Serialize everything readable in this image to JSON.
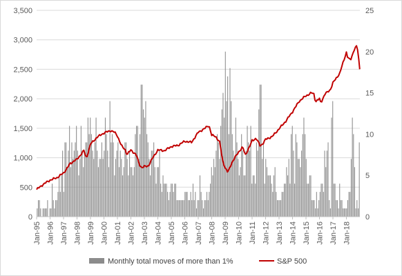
{
  "chart_data": {
    "type": "bar+line",
    "title": "",
    "xlabel": "",
    "ylabel_left": "",
    "ylabel_right": "",
    "left_axis": {
      "min": 0,
      "max": 3500,
      "ticks": [
        "0",
        "500",
        "1,000",
        "1,500",
        "2,000",
        "2,500",
        "3,000",
        "3,500"
      ]
    },
    "right_axis": {
      "min": 0,
      "max": 25,
      "ticks": [
        "0",
        "5",
        "10",
        "15",
        "20",
        "25"
      ]
    },
    "x_ticks": [
      "Jan-95",
      "Jan-96",
      "Jan-97",
      "Jan-98",
      "Jan-99",
      "Jan-00",
      "Jan-01",
      "Jan-02",
      "Jan-03",
      "Jan-04",
      "Jan-05",
      "Jan-06",
      "Jan-07",
      "Jan-08",
      "Jan-09",
      "Jan-10",
      "Jan-11",
      "Jan-12",
      "Jan-13",
      "Jan-14",
      "Jan-15",
      "Jan-16",
      "Jan-17",
      "Jan-18"
    ],
    "grid": "horizontal",
    "legend_position": "bottom",
    "series": [
      {
        "name": "Monthly total moves of more than 1%",
        "axis": "right",
        "kind": "bar",
        "color": "#8c8c8c",
        "values": [
          1,
          2,
          2,
          1,
          0,
          1,
          1,
          1,
          1,
          2,
          0,
          1,
          1,
          4,
          2,
          1,
          2,
          2,
          3,
          5,
          3,
          5,
          8,
          3,
          9,
          9,
          6,
          8,
          11,
          6,
          9,
          7,
          8,
          9,
          11,
          8,
          5,
          7,
          11,
          8,
          6,
          8,
          9,
          9,
          12,
          10,
          12,
          10,
          8,
          7,
          9,
          12,
          8,
          6,
          7,
          7,
          9,
          7,
          8,
          12,
          10,
          8,
          6,
          14,
          9,
          10,
          9,
          5,
          7,
          8,
          9,
          6,
          8,
          7,
          5,
          6,
          9,
          9,
          7,
          5,
          8,
          6,
          6,
          5,
          6,
          10,
          11,
          11,
          7,
          10,
          16,
          16,
          13,
          12,
          14,
          10,
          9,
          7,
          5,
          8,
          8,
          9,
          6,
          4,
          6,
          6,
          8,
          4,
          3,
          5,
          4,
          4,
          4,
          3,
          2,
          3,
          4,
          4,
          3,
          4,
          4,
          2,
          2,
          2,
          2,
          2,
          2,
          2,
          3,
          3,
          3,
          2,
          2,
          3,
          2,
          4,
          2,
          3,
          1,
          2,
          2,
          5,
          3,
          2,
          1,
          2,
          2,
          3,
          2,
          3,
          4,
          6,
          5,
          7,
          6,
          8,
          10,
          9,
          7,
          11,
          13,
          15,
          12,
          20,
          14,
          17,
          10,
          18,
          14,
          10,
          8,
          7,
          12,
          9,
          7,
          5,
          6,
          10,
          8,
          5,
          5,
          8,
          11,
          9,
          8,
          11,
          4,
          5,
          5,
          4,
          9,
          8,
          13,
          16,
          16,
          7,
          9,
          4,
          7,
          6,
          5,
          5,
          5,
          4,
          3,
          5,
          6,
          3,
          2,
          2,
          2,
          2,
          3,
          3,
          4,
          4,
          6,
          5,
          7,
          4,
          10,
          11,
          8,
          4,
          10,
          9,
          7,
          7,
          6,
          8,
          10,
          12,
          10,
          7,
          4,
          4,
          5,
          5,
          2,
          2,
          2,
          1,
          3,
          1,
          2,
          3,
          4,
          4,
          3,
          8,
          6,
          8,
          9,
          2,
          1,
          12,
          14,
          4,
          4,
          2,
          2,
          1,
          4,
          2,
          2,
          1,
          1,
          1,
          1,
          2,
          3,
          3,
          7,
          12,
          10,
          6,
          1,
          2,
          1,
          9
        ]
      },
      {
        "name": "S&P 500",
        "axis": "left",
        "kind": "line",
        "color": "#c00000",
        "anchors": [
          [
            1995.0,
            460
          ],
          [
            1995.5,
            550
          ],
          [
            1996.0,
            620
          ],
          [
            1996.5,
            660
          ],
          [
            1997.0,
            740
          ],
          [
            1997.5,
            900
          ],
          [
            1997.8,
            950
          ],
          [
            1998.0,
            970
          ],
          [
            1998.5,
            1120
          ],
          [
            1998.7,
            990
          ],
          [
            1999.0,
            1230
          ],
          [
            1999.5,
            1350
          ],
          [
            2000.0,
            1420
          ],
          [
            2000.5,
            1460
          ],
          [
            2000.8,
            1430
          ],
          [
            2001.0,
            1370
          ],
          [
            2001.3,
            1200
          ],
          [
            2001.6,
            1130
          ],
          [
            2001.7,
            1050
          ],
          [
            2002.0,
            1130
          ],
          [
            2002.4,
            1050
          ],
          [
            2002.6,
            900
          ],
          [
            2002.8,
            830
          ],
          [
            2003.0,
            850
          ],
          [
            2003.3,
            860
          ],
          [
            2003.6,
            990
          ],
          [
            2004.0,
            1130
          ],
          [
            2004.5,
            1120
          ],
          [
            2005.0,
            1190
          ],
          [
            2005.5,
            1210
          ],
          [
            2006.0,
            1280
          ],
          [
            2006.5,
            1260
          ],
          [
            2007.0,
            1430
          ],
          [
            2007.5,
            1500
          ],
          [
            2007.8,
            1550
          ],
          [
            2008.0,
            1380
          ],
          [
            2008.3,
            1360
          ],
          [
            2008.6,
            1260
          ],
          [
            2008.8,
            960
          ],
          [
            2009.0,
            830
          ],
          [
            2009.2,
            750
          ],
          [
            2009.5,
            920
          ],
          [
            2010.0,
            1100
          ],
          [
            2010.3,
            1180
          ],
          [
            2010.5,
            1050
          ],
          [
            2010.8,
            1180
          ],
          [
            2011.0,
            1290
          ],
          [
            2011.3,
            1330
          ],
          [
            2011.6,
            1200
          ],
          [
            2011.8,
            1240
          ],
          [
            2012.0,
            1310
          ],
          [
            2012.5,
            1360
          ],
          [
            2013.0,
            1490
          ],
          [
            2013.5,
            1620
          ],
          [
            2014.0,
            1780
          ],
          [
            2014.5,
            1960
          ],
          [
            2015.0,
            2050
          ],
          [
            2015.4,
            2100
          ],
          [
            2015.6,
            2080
          ],
          [
            2015.7,
            1950
          ],
          [
            2016.0,
            2000
          ],
          [
            2016.1,
            1930
          ],
          [
            2016.4,
            2080
          ],
          [
            2016.8,
            2150
          ],
          [
            2017.0,
            2270
          ],
          [
            2017.5,
            2430
          ],
          [
            2018.0,
            2790
          ],
          [
            2018.1,
            2700
          ],
          [
            2018.3,
            2650
          ],
          [
            2018.6,
            2850
          ],
          [
            2018.8,
            2900
          ],
          [
            2018.9,
            2700
          ],
          [
            2018.99,
            2500
          ]
        ]
      }
    ]
  },
  "legend": [
    {
      "label": "Monthly total moves of more than 1%",
      "color": "#8c8c8c"
    },
    {
      "label": "S&P 500",
      "color": "#c00000"
    }
  ]
}
